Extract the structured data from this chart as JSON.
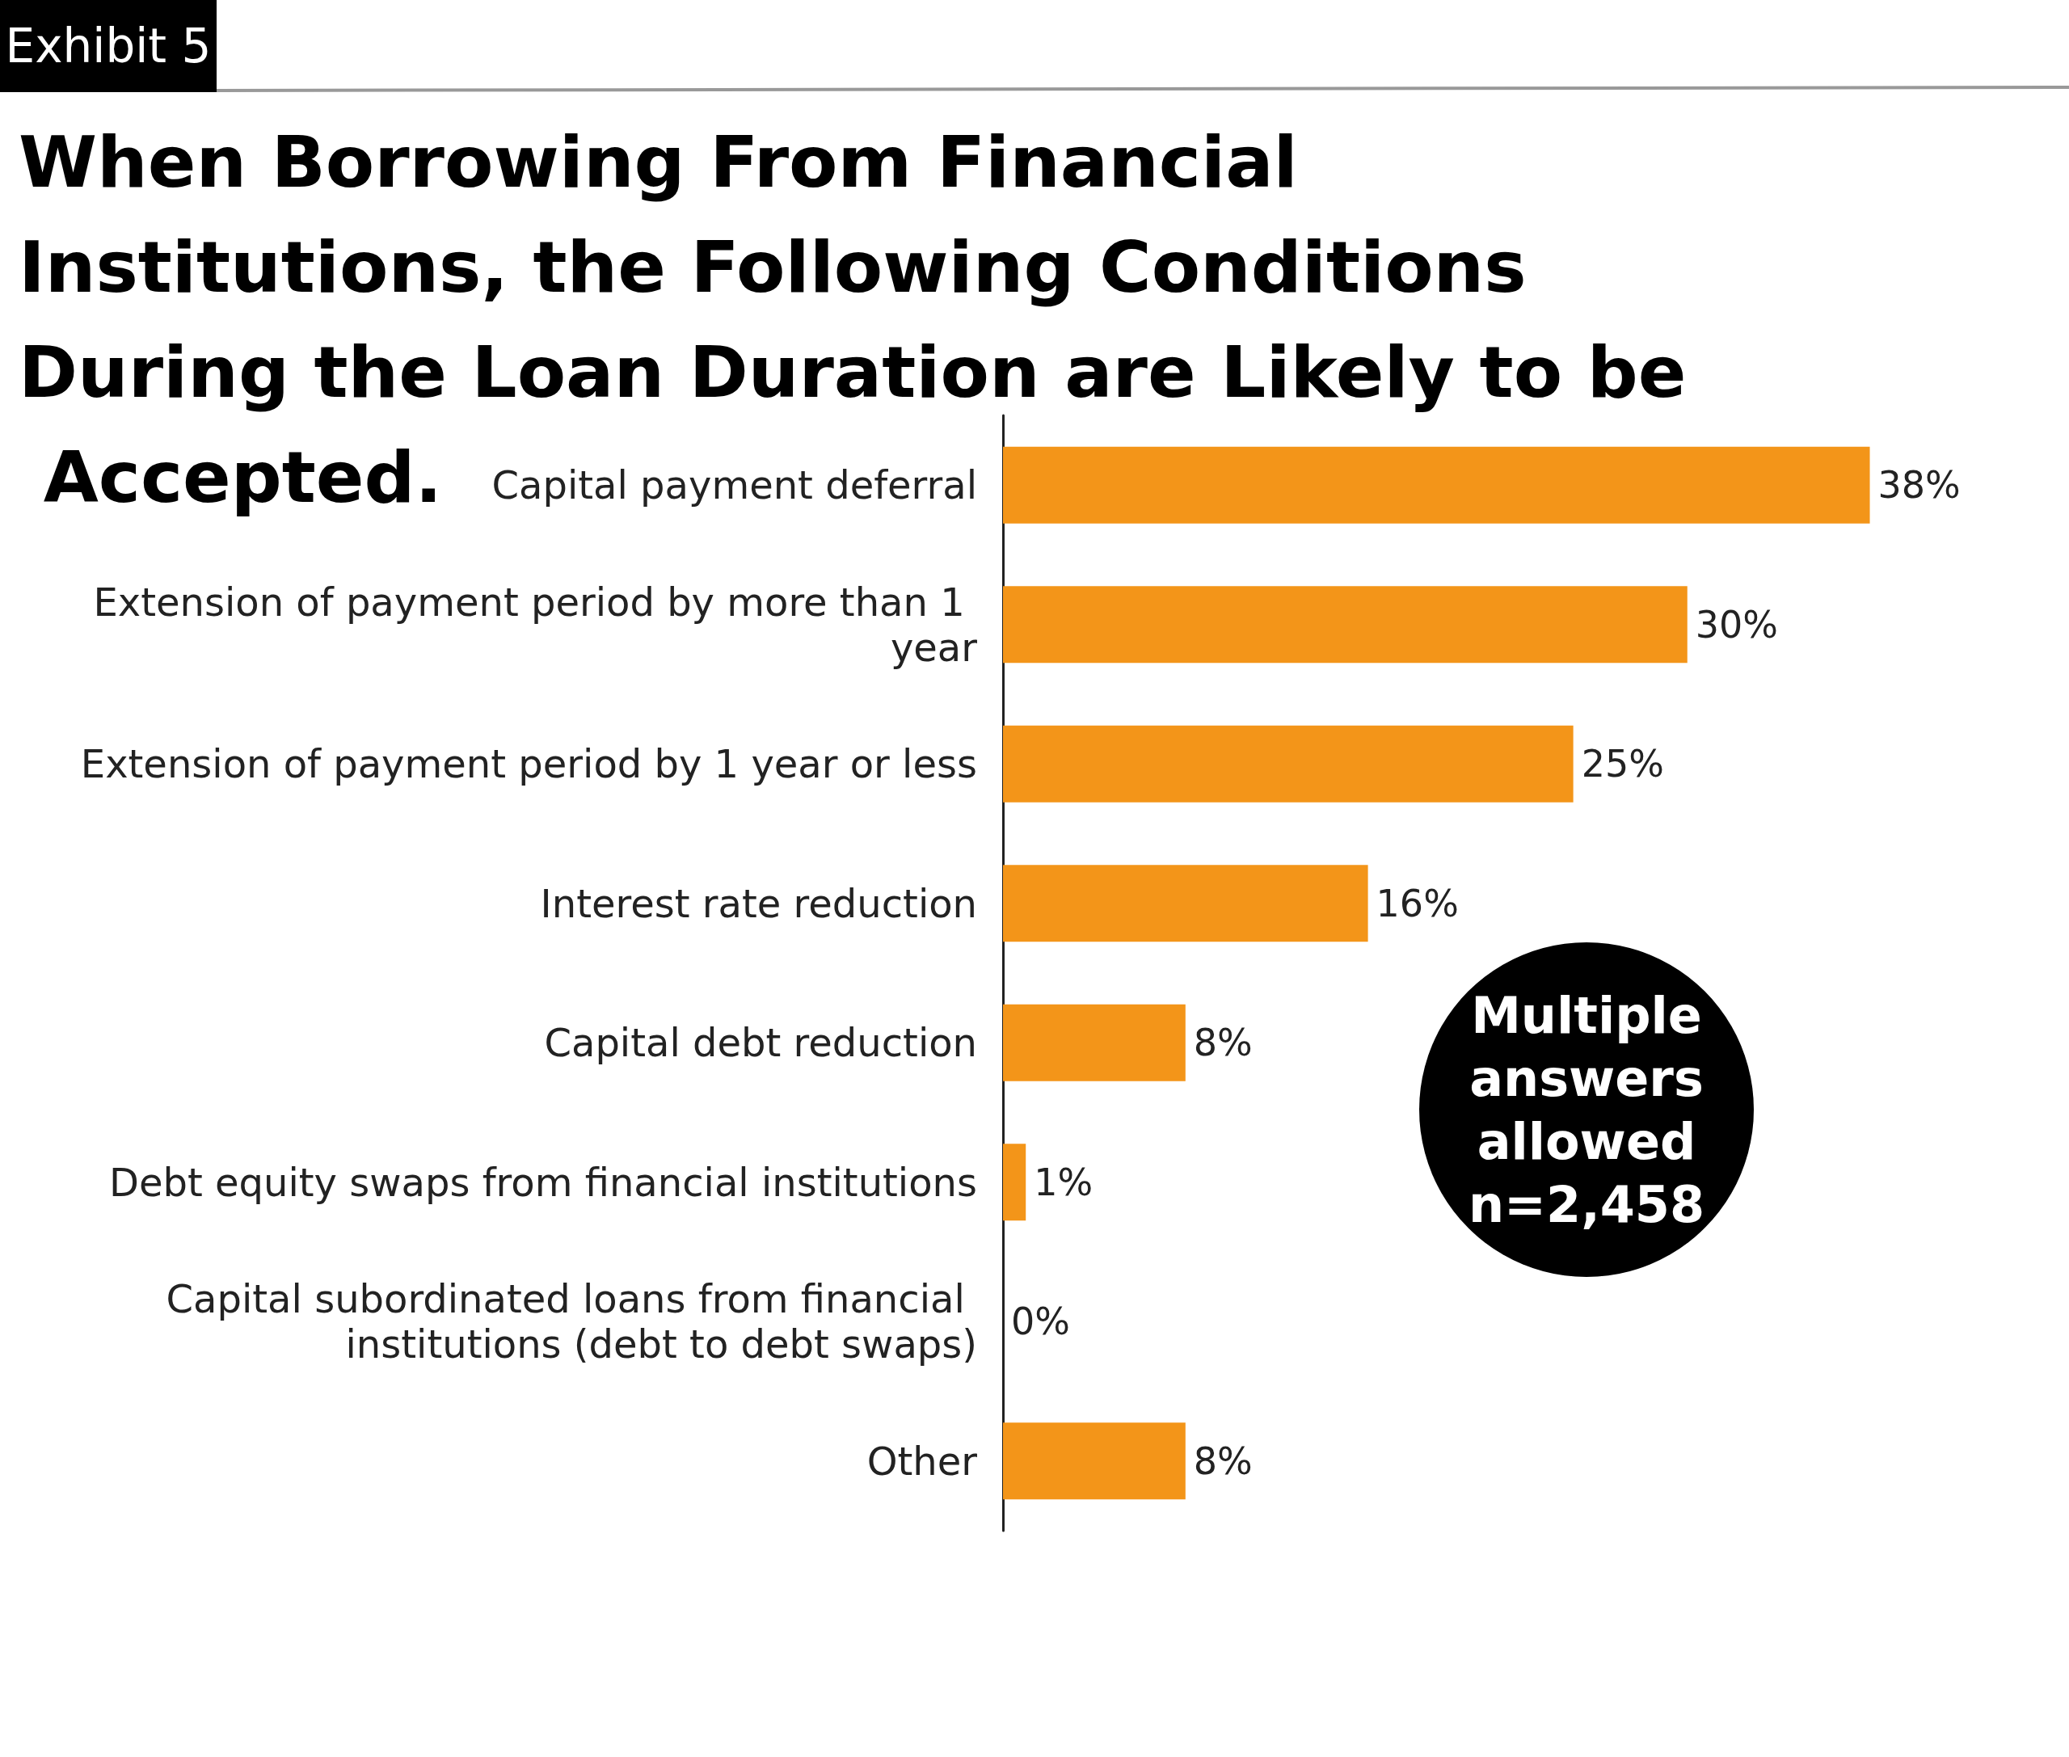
{
  "chart_data": {
    "type": "bar",
    "orientation": "horizontal",
    "title": "When Borrowing From Financial Institutions, the Following Conditions During the Loan Duration are Likely to be Accepted.",
    "categories": [
      "Capital payment deferral",
      "Extension of payment period by more than 1 year",
      "Extension of payment period by 1 year or less",
      "Interest rate reduction",
      "Capital debt reduction",
      "Debt equity swaps from financial institutions",
      "Capital subordinated loans from financial institutions (debt to debt swaps)",
      "Other"
    ],
    "values": [
      38,
      30,
      25,
      16,
      8,
      1,
      0,
      8
    ],
    "value_labels": [
      "38%",
      "30%",
      "25%",
      "16%",
      "8%",
      "1%",
      "0%",
      "8%"
    ],
    "color": "#f39519",
    "annotations": [
      "Exhibit 5",
      "Multiple answers allowed",
      "n=2,458"
    ]
  }
}
